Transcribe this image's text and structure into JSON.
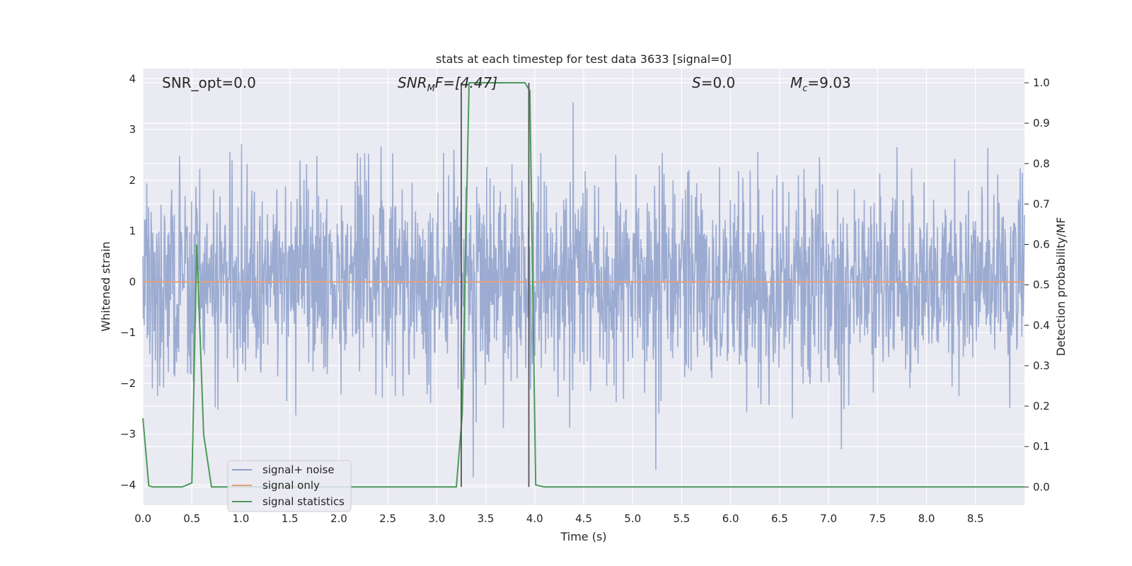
{
  "chart_data": {
    "type": "line",
    "title": "stats at each timestep for test data 3633 [signal=0]",
    "xlabel": "Time (s)",
    "ylabel_left": "Whitened strain",
    "ylabel_right": "Detection probability/MF",
    "xlim": [
      0.0,
      9.0
    ],
    "ylim_left": [
      -4.4,
      4.2
    ],
    "ylim_right": [
      -0.045,
      1.035
    ],
    "x_ticks": [
      "0.0",
      "0.5",
      "1.0",
      "1.5",
      "2.0",
      "2.5",
      "3.0",
      "3.5",
      "4.0",
      "4.5",
      "5.0",
      "5.5",
      "6.0",
      "6.5",
      "7.0",
      "7.5",
      "8.0",
      "8.5"
    ],
    "y_ticks_left": [
      "−4",
      "−3",
      "−2",
      "−1",
      "0",
      "1",
      "2",
      "3",
      "4"
    ],
    "y_ticks_right": [
      "0.0",
      "0.1",
      "0.2",
      "0.3",
      "0.4",
      "0.5",
      "0.6",
      "0.7",
      "0.8",
      "0.9",
      "1.0"
    ],
    "grid": true,
    "legend_position": "lower-left",
    "annotations": {
      "snr_opt": "SNR_opt=0.0",
      "snr_mf_label": "SNR",
      "snr_mf_sub": "M",
      "snr_mf_tail": "F=[4.47]",
      "s_label": "S",
      "s_value": "=0.0",
      "mc_label": "M",
      "mc_sub": "c",
      "mc_value": "=9.03"
    },
    "vlines": [
      3.25,
      3.94
    ],
    "series": [
      {
        "name": "signal+ noise",
        "axis": "left",
        "color": "#8da0cb",
        "description_range": [
          -3.9,
          3.9
        ],
        "noise_sigma": 1.0,
        "samples": 2048
      },
      {
        "name": "signal only",
        "axis": "left",
        "color": "#e5a07d",
        "x": [
          0.0,
          9.0
        ],
        "y": [
          0.0,
          0.0
        ]
      },
      {
        "name": "signal statistics",
        "axis": "right",
        "color": "#4c9a5a",
        "x": [
          0.0,
          0.06,
          0.1,
          0.2,
          0.3,
          0.4,
          0.5,
          0.55,
          0.62,
          0.7,
          0.8,
          1.0,
          1.5,
          2.0,
          2.5,
          3.0,
          3.2,
          3.26,
          3.33,
          3.5,
          3.7,
          3.9,
          3.95,
          4.01,
          4.1,
          4.5,
          5.0,
          6.0,
          7.0,
          8.0,
          9.0
        ],
        "y": [
          0.17,
          0.003,
          0.0,
          0.0,
          0.0,
          0.0,
          0.01,
          0.6,
          0.13,
          0.0,
          0.0,
          0.0,
          0.0,
          0.0,
          0.0,
          0.0,
          0.0,
          0.18,
          1.0,
          1.0,
          1.0,
          1.0,
          0.98,
          0.005,
          0.0,
          0.0,
          0.0,
          0.0,
          0.0,
          0.0,
          0.0
        ]
      }
    ]
  },
  "legend": {
    "items": [
      {
        "label": "signal+ noise",
        "color": "#8da0cb"
      },
      {
        "label": "signal only",
        "color": "#e5a07d"
      },
      {
        "label": "signal statistics",
        "color": "#4c9a5a"
      }
    ]
  },
  "colors": {
    "plot_bg": "#eaeaf2",
    "grid": "#ffffff",
    "vline": "#555555"
  }
}
